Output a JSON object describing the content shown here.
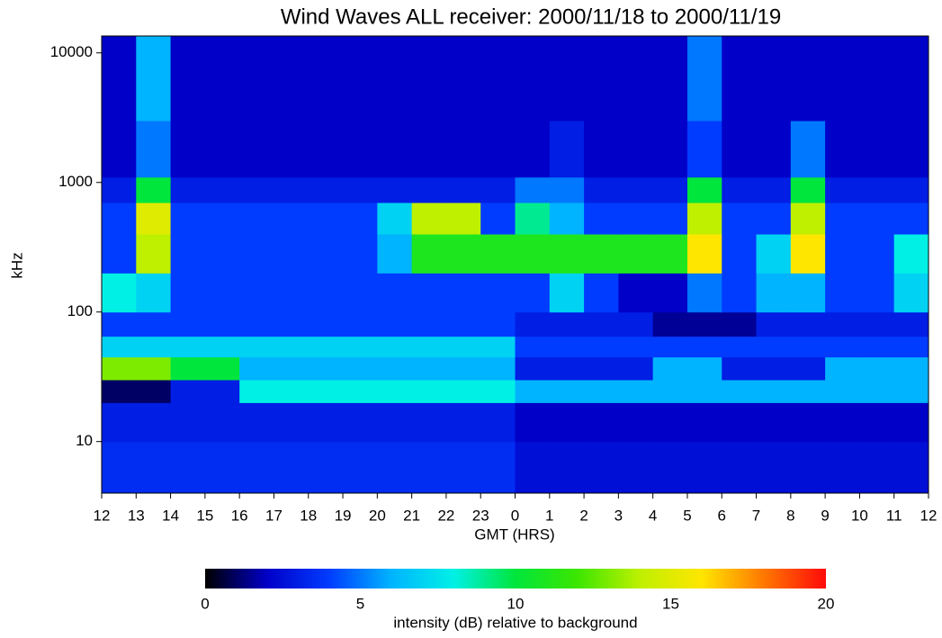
{
  "chart_data": {
    "type": "heatmap",
    "title": "Wind Waves ALL receiver: 2000/11/18 to 2000/11/19",
    "xlabel": "GMT (HRS)",
    "ylabel": "kHz",
    "colorbar_label": "intensity (dB) relative to background",
    "log_y": true,
    "xlim": [
      0,
      24
    ],
    "xticks": [
      {
        "value": 0,
        "label": "12"
      },
      {
        "value": 1,
        "label": "13"
      },
      {
        "value": 2,
        "label": "14"
      },
      {
        "value": 3,
        "label": "15"
      },
      {
        "value": 4,
        "label": "16"
      },
      {
        "value": 5,
        "label": "17"
      },
      {
        "value": 6,
        "label": "18"
      },
      {
        "value": 7,
        "label": "19"
      },
      {
        "value": 8,
        "label": "20"
      },
      {
        "value": 9,
        "label": "21"
      },
      {
        "value": 10,
        "label": "22"
      },
      {
        "value": 11,
        "label": "23"
      },
      {
        "value": 12,
        "label": "0"
      },
      {
        "value": 13,
        "label": "1"
      },
      {
        "value": 14,
        "label": "2"
      },
      {
        "value": 15,
        "label": "3"
      },
      {
        "value": 16,
        "label": "4"
      },
      {
        "value": 17,
        "label": "5"
      },
      {
        "value": 18,
        "label": "6"
      },
      {
        "value": 19,
        "label": "7"
      },
      {
        "value": 20,
        "label": "8"
      },
      {
        "value": 21,
        "label": "9"
      },
      {
        "value": 22,
        "label": "10"
      },
      {
        "value": 23,
        "label": "11"
      },
      {
        "value": 24,
        "label": "12"
      }
    ],
    "ylim": [
      4,
      13500
    ],
    "yticks": [
      10,
      100,
      1000,
      10000
    ],
    "clim": [
      0,
      20
    ],
    "cticks": [
      0,
      5,
      10,
      15,
      20
    ],
    "x_edges": [
      0,
      1,
      2,
      3,
      4,
      5,
      6,
      7,
      8,
      9,
      10,
      11,
      12,
      13,
      14,
      15,
      16,
      17,
      18,
      19,
      20,
      21,
      22,
      23,
      24
    ],
    "y_edges": [
      4,
      10,
      20,
      30,
      45,
      65,
      100,
      200,
      400,
      700,
      1100,
      3000,
      13500
    ],
    "z": [
      [
        3.5,
        3.5,
        3.5,
        3.5,
        3.5,
        3.5,
        3.5,
        3.5,
        3.5,
        3.5,
        3.5,
        3.5,
        2.5,
        2.5,
        2.5,
        2.5,
        2.5,
        2.5,
        2.5,
        2.5,
        2.5,
        2.5,
        2.5,
        2.5
      ],
      [
        3,
        3,
        3,
        3,
        3,
        3,
        3,
        3,
        3,
        3,
        3,
        3,
        2,
        2,
        2,
        2,
        2,
        2,
        2,
        2,
        2,
        2,
        2,
        2
      ],
      [
        1,
        1,
        3,
        3,
        8,
        8,
        8,
        8,
        8,
        8,
        8,
        8,
        6,
        6,
        6,
        6,
        6,
        6,
        6,
        6,
        6,
        6,
        6,
        6
      ],
      [
        13,
        13,
        10,
        10,
        6,
        6,
        6,
        6,
        6,
        6,
        6,
        6,
        3,
        3,
        3,
        3,
        6,
        6,
        3,
        3,
        3,
        6,
        6,
        6
      ],
      [
        7,
        7,
        7,
        7,
        7,
        7,
        7,
        7,
        7,
        7,
        7,
        7,
        4,
        4,
        4,
        4,
        4,
        4,
        4,
        4,
        4,
        4,
        4,
        4
      ],
      [
        4,
        4,
        4,
        4,
        4,
        4,
        4,
        4,
        4,
        4,
        4,
        4,
        3,
        3,
        3,
        3,
        1.5,
        1.5,
        1.5,
        3,
        3,
        3,
        3,
        3
      ],
      [
        8,
        7,
        4,
        4,
        4,
        4,
        4,
        4,
        4,
        4,
        4,
        4,
        4,
        7,
        4,
        2,
        2,
        5,
        4,
        6,
        6,
        4,
        4,
        7
      ],
      [
        4,
        14,
        4,
        4,
        4,
        4,
        4,
        4,
        6,
        11,
        11,
        11,
        11,
        11,
        11,
        11,
        11,
        16,
        4,
        7,
        16,
        4,
        4,
        8
      ],
      [
        4,
        15,
        4,
        4,
        4,
        4,
        4,
        4,
        7,
        14,
        14,
        4,
        9,
        6,
        4,
        4,
        4,
        14,
        4,
        4,
        14,
        4,
        4,
        4
      ],
      [
        3,
        10,
        3,
        3,
        3,
        3,
        3,
        3,
        3,
        3,
        3,
        3,
        5,
        5,
        3,
        3,
        3,
        10,
        3,
        3,
        10,
        3,
        3,
        3
      ],
      [
        2,
        5,
        2,
        2,
        2,
        2,
        2,
        2,
        2,
        2,
        2,
        2,
        2,
        3,
        2,
        2,
        2,
        4,
        2,
        2,
        5,
        2,
        2,
        2
      ],
      [
        2,
        6,
        2,
        2,
        2,
        2,
        2,
        2,
        2,
        2,
        2,
        2,
        2,
        2,
        2,
        2,
        2,
        5,
        2,
        2,
        2,
        2,
        2,
        2
      ]
    ]
  }
}
